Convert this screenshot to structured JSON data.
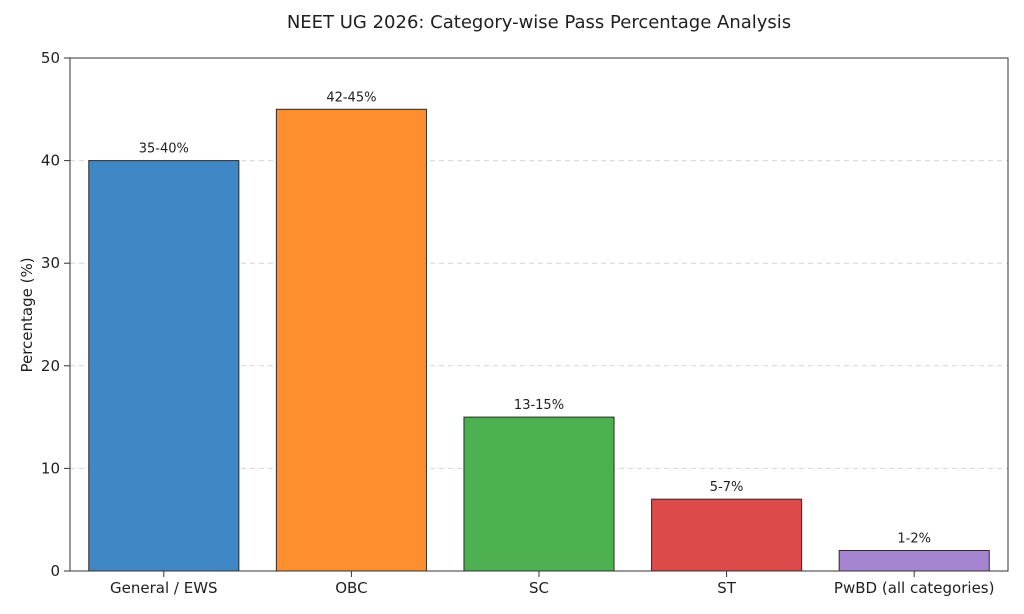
{
  "chart_data": {
    "type": "bar",
    "title": "NEET UG 2026: Category-wise Pass Percentage Analysis",
    "xlabel": "",
    "ylabel": "Percentage (%)",
    "ylim": [
      0,
      50
    ],
    "yticks": [
      0,
      10,
      20,
      30,
      40,
      50
    ],
    "grid": "horizontal dashed",
    "categories": [
      "General / EWS",
      "OBC",
      "SC",
      "ST",
      "PwBD (all categories)"
    ],
    "values": [
      40,
      45,
      15,
      7,
      2
    ],
    "data_labels": [
      "35-40%",
      "42-45%",
      "13-15%",
      "5-7%",
      "1-2%"
    ],
    "colors": [
      "#3f88c5",
      "#ff8f2e",
      "#4caf50",
      "#dc4a4a",
      "#a584cf"
    ]
  }
}
